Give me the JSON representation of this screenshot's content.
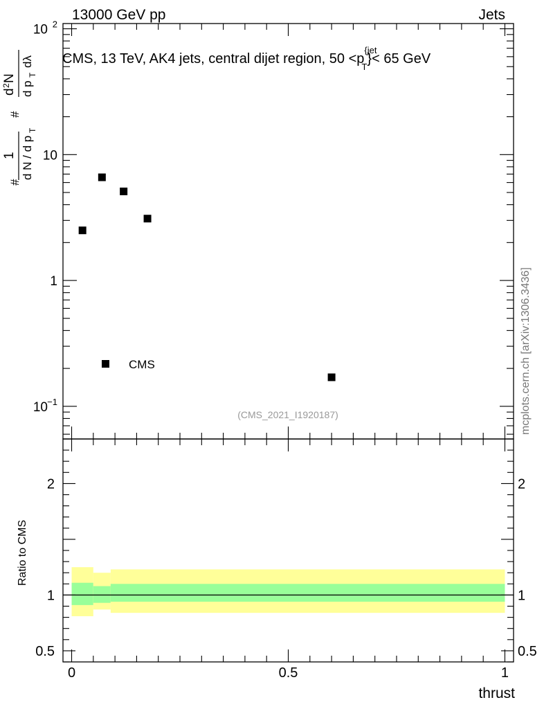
{
  "header": {
    "left": "13000 GeV pp",
    "right": "Jets"
  },
  "watermark": "mcplots.cern.ch [arXiv:1306.3436]",
  "analysis_id": "(CMS_2021_I1920187)",
  "colors": {
    "data_marker": "#000000",
    "band_inner": "#99ff99",
    "band_outer": "#ffff99",
    "analysis_id": "#999999",
    "watermark": "#777777"
  },
  "chart_data": [
    {
      "type": "scatter",
      "panel": "main",
      "title": "CMS, 13 TeV, AK4 jets, central dijet region, 50 <p_T^{jet}< 65 GeV",
      "ylabel": "1/(dN/dp_T) dN/(dp_T dλ)",
      "yscale": "log",
      "ylim": [
        0.055,
        110
      ],
      "xlim": [
        -0.02,
        1.02
      ],
      "y_tick_labels": [
        "10^-1",
        "1",
        "10",
        "10^2"
      ],
      "series": [
        {
          "name": "CMS",
          "marker": "square",
          "x": [
            0.025,
            0.07,
            0.12,
            0.175,
            0.6
          ],
          "y": [
            2.5,
            6.6,
            5.1,
            3.1,
            0.17
          ]
        }
      ],
      "legend": {
        "placement": "bottom-left",
        "entries": [
          "CMS"
        ]
      }
    },
    {
      "type": "area",
      "panel": "ratio",
      "ylabel": "Ratio to CMS",
      "xlabel": "thrust",
      "ylim": [
        0.4,
        2.4
      ],
      "xlim": [
        -0.02,
        1.02
      ],
      "x_tick_labels": [
        "0",
        "0.5",
        "1"
      ],
      "y_tick_labels": [
        "0.5",
        "1",
        "2"
      ],
      "reference_line": 1,
      "bins": [
        {
          "x0": 0.0,
          "x1": 0.05,
          "inner": [
            0.91,
            1.11
          ],
          "outer": [
            0.81,
            1.25
          ]
        },
        {
          "x0": 0.05,
          "x1": 0.09,
          "inner": [
            0.93,
            1.08
          ],
          "outer": [
            0.87,
            1.2
          ]
        },
        {
          "x0": 0.09,
          "x1": 1.0,
          "inner": [
            0.94,
            1.1
          ],
          "outer": [
            0.84,
            1.23
          ]
        }
      ]
    }
  ]
}
